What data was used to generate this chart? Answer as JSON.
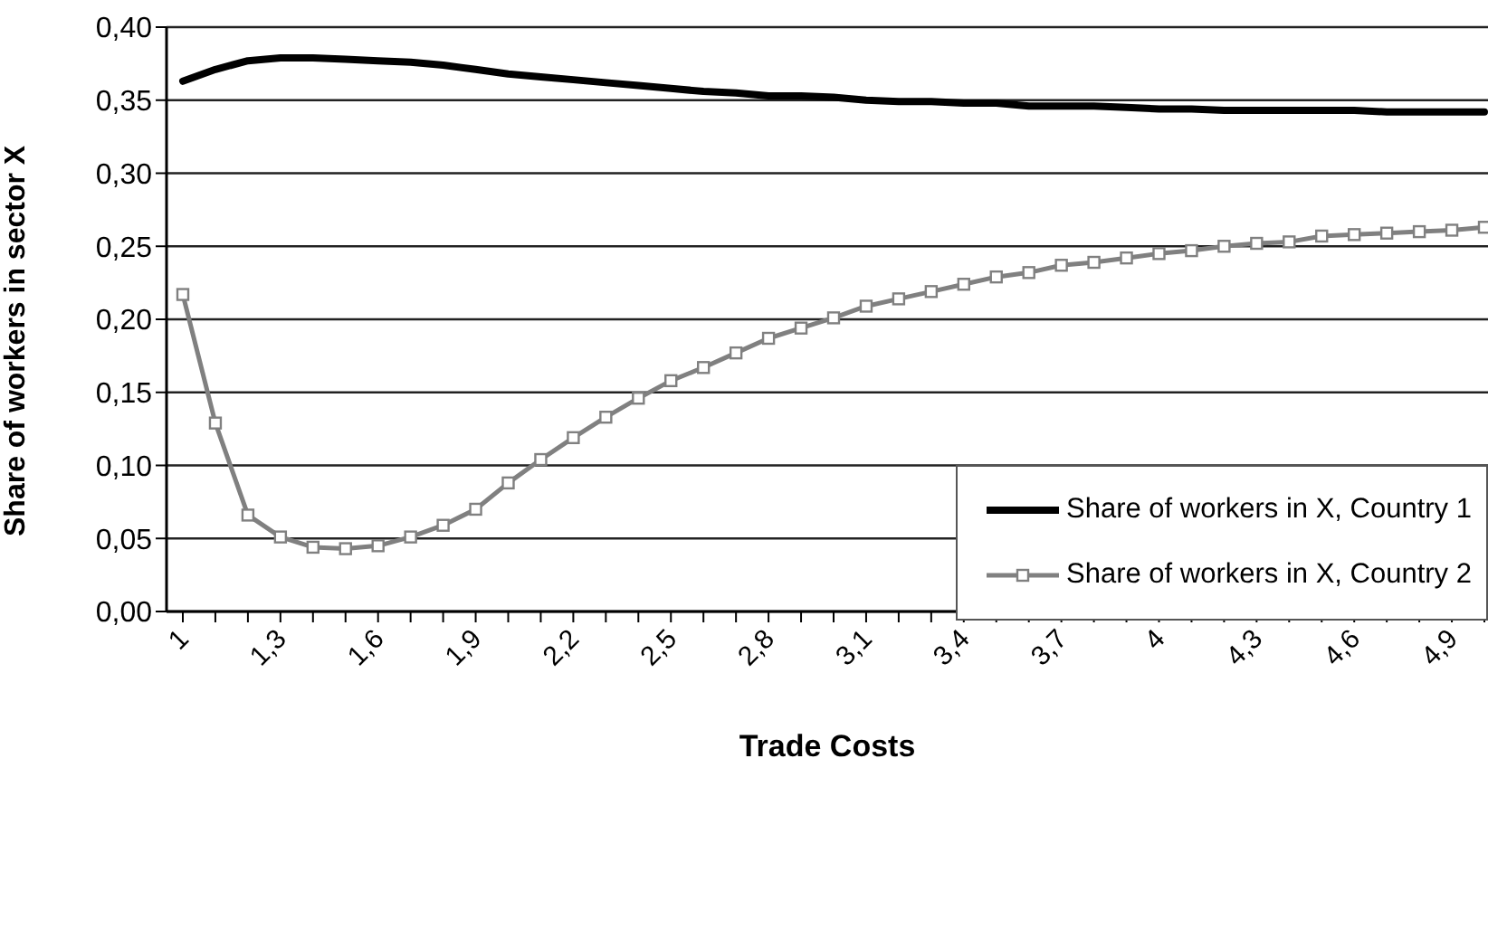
{
  "chart_data": {
    "type": "line",
    "xlabel": "Trade Costs",
    "ylabel": "Share of workers in sector X",
    "categories": [
      "1",
      null,
      null,
      "1,3",
      null,
      null,
      "1,6",
      null,
      null,
      "1,9",
      null,
      null,
      "2,2",
      null,
      null,
      "2,5",
      null,
      null,
      "2,8",
      null,
      null,
      "3,1",
      null,
      null,
      "3,4",
      null,
      null,
      "3,7",
      null,
      null,
      "4",
      null,
      null,
      "4,3",
      null,
      null,
      "4,6",
      null,
      null,
      "4,9",
      null
    ],
    "series": [
      {
        "name": "Share of workers in X, Country 1",
        "color": "#000000",
        "marker": "none",
        "values": [
          0.363,
          0.371,
          0.377,
          0.379,
          0.379,
          0.378,
          0.377,
          0.376,
          0.374,
          0.371,
          0.368,
          0.366,
          0.364,
          0.362,
          0.36,
          0.358,
          0.356,
          0.355,
          0.353,
          0.353,
          0.352,
          0.35,
          0.349,
          0.349,
          0.348,
          0.348,
          0.346,
          0.346,
          0.346,
          0.345,
          0.344,
          0.344,
          0.343,
          0.343,
          0.343,
          0.343,
          0.343,
          0.342,
          0.342,
          0.342,
          0.342
        ]
      },
      {
        "name": "Share of workers in X, Country 2",
        "color": "#808080",
        "marker": "square",
        "values": [
          0.217,
          0.129,
          0.066,
          0.051,
          0.044,
          0.043,
          0.045,
          0.051,
          0.059,
          0.07,
          0.088,
          0.104,
          0.119,
          0.133,
          0.146,
          0.158,
          0.167,
          0.177,
          0.187,
          0.194,
          0.201,
          0.209,
          0.214,
          0.219,
          0.224,
          0.229,
          0.232,
          0.237,
          0.239,
          0.242,
          0.245,
          0.247,
          0.25,
          0.252,
          0.253,
          0.257,
          0.258,
          0.259,
          0.26,
          0.261,
          0.263
        ]
      }
    ],
    "ylim": [
      0,
      0.4
    ],
    "yticks": [
      {
        "value": 0,
        "label": "0,00"
      },
      {
        "value": 0.05,
        "label": "0,05"
      },
      {
        "value": 0.1,
        "label": "0,10"
      },
      {
        "value": 0.15,
        "label": "0,15"
      },
      {
        "value": 0.2,
        "label": "0,20"
      },
      {
        "value": 0.25,
        "label": "0,25"
      },
      {
        "value": 0.3,
        "label": "0,30"
      },
      {
        "value": 0.35,
        "label": "0,35"
      },
      {
        "value": 0.4,
        "label": "0,40"
      }
    ],
    "grid": "y",
    "legend": "right"
  }
}
